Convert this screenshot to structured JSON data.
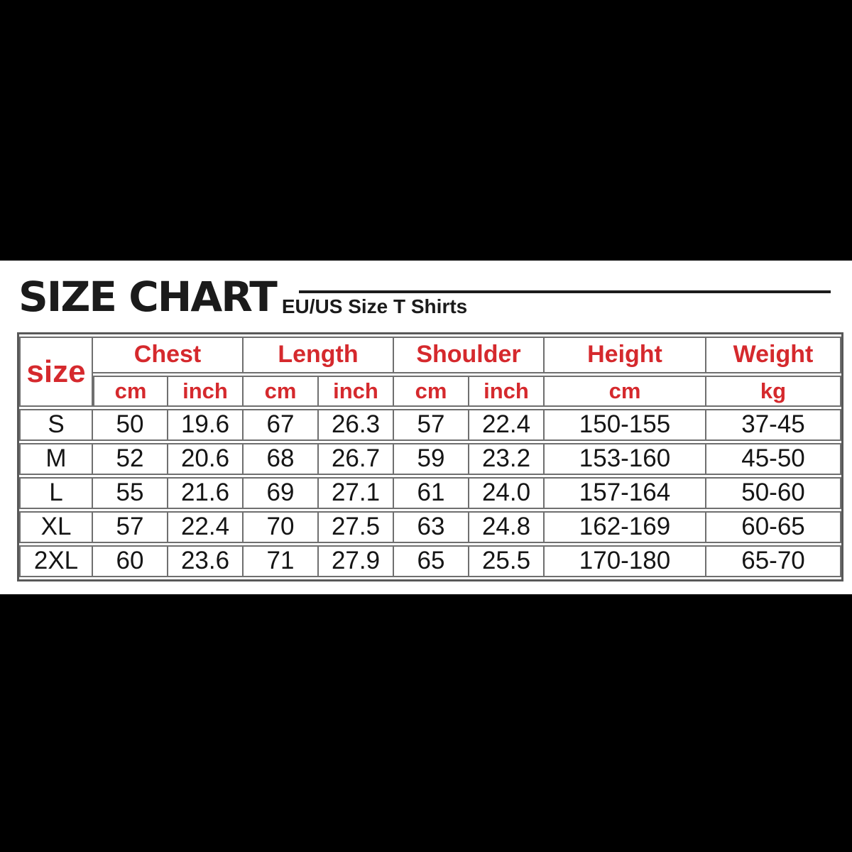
{
  "chart_data": {
    "type": "table",
    "title": "SIZE CHART",
    "subtitle": "EU/US Size T Shirts",
    "corner_label": "size",
    "column_groups": [
      {
        "label": "Chest",
        "sub_headers": [
          "cm",
          "inch"
        ]
      },
      {
        "label": "Length",
        "sub_headers": [
          "cm",
          "inch"
        ]
      },
      {
        "label": "Shoulder",
        "sub_headers": [
          "cm",
          "inch"
        ]
      },
      {
        "label": "Height",
        "sub_headers": [
          "cm"
        ]
      },
      {
        "label": "Weight",
        "sub_headers": [
          "kg"
        ]
      }
    ],
    "rows": [
      {
        "size": "S",
        "values": [
          "50",
          "19.6",
          "67",
          "26.3",
          "57",
          "22.4",
          "150-155",
          "37-45"
        ]
      },
      {
        "size": "M",
        "values": [
          "52",
          "20.6",
          "68",
          "26.7",
          "59",
          "23.2",
          "153-160",
          "45-50"
        ]
      },
      {
        "size": "L",
        "values": [
          "55",
          "21.6",
          "69",
          "27.1",
          "61",
          "24.0",
          "157-164",
          "50-60"
        ]
      },
      {
        "size": "XL",
        "values": [
          "57",
          "22.4",
          "70",
          "27.5",
          "63",
          "24.8",
          "162-169",
          "60-65"
        ]
      },
      {
        "size": "2XL",
        "values": [
          "60",
          "23.6",
          "71",
          "27.9",
          "65",
          "25.5",
          "170-180",
          "65-70"
        ]
      }
    ]
  },
  "colors": {
    "header_red": "#d5292d",
    "body_text": "#151515",
    "grid_gray": "#6f6f6f",
    "band_black": "#000000",
    "sheet_white": "#ffffff"
  }
}
